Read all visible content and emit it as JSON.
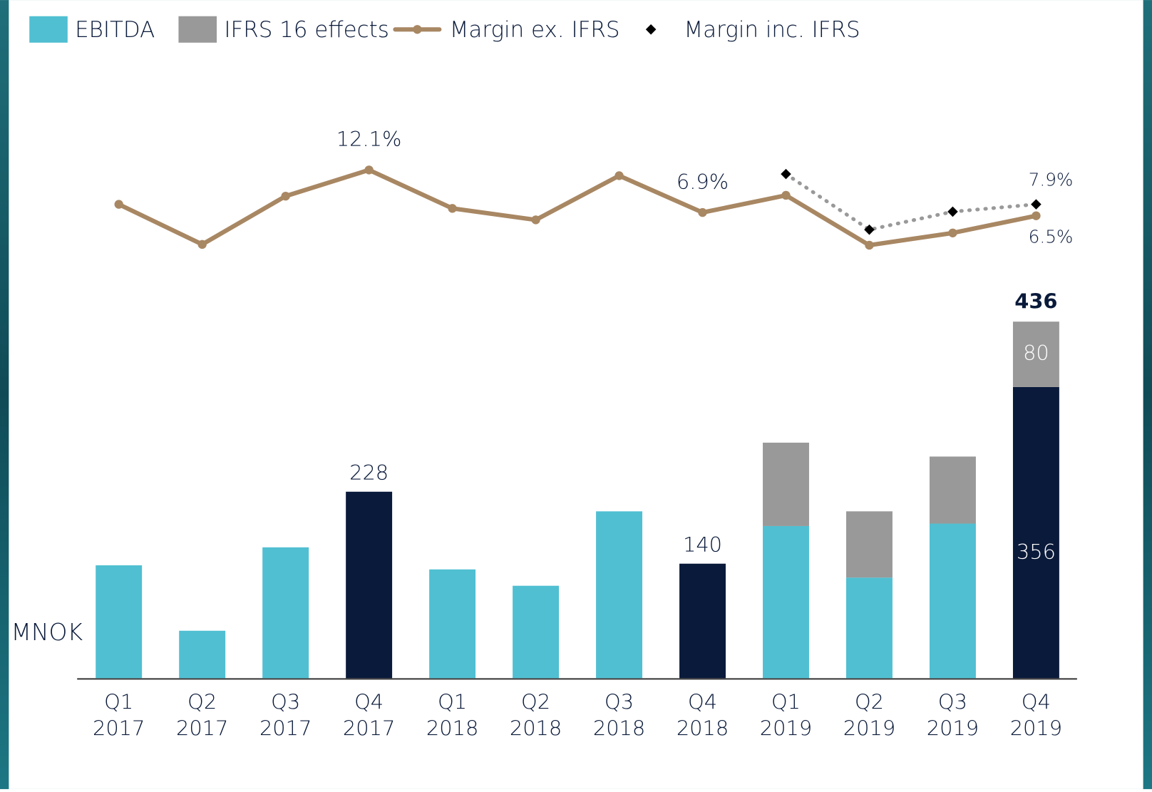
{
  "chart_data": {
    "type": "bar",
    "categories": [
      [
        "Q1",
        "2017"
      ],
      [
        "Q2",
        "2017"
      ],
      [
        "Q3",
        "2017"
      ],
      [
        "Q4",
        "2017"
      ],
      [
        "Q1",
        "2018"
      ],
      [
        "Q2",
        "2018"
      ],
      [
        "Q3",
        "2018"
      ],
      [
        "Q4",
        "2018"
      ],
      [
        "Q1",
        "2019"
      ],
      [
        "Q2",
        "2019"
      ],
      [
        "Q3",
        "2019"
      ],
      [
        "Q4",
        "2019"
      ]
    ],
    "y_label": "MNOK",
    "ylim": [
      0,
      460
    ],
    "y2lim": [
      0,
      18.5
    ],
    "series": [
      {
        "name": "EBITDA",
        "type": "bar",
        "color": "#50bfd2",
        "point_colors": [
          "#50bfd2",
          "#50bfd2",
          "#50bfd2",
          "#0a1a3a",
          "#50bfd2",
          "#50bfd2",
          "#50bfd2",
          "#0a1a3a",
          "#50bfd2",
          "#50bfd2",
          "#50bfd2",
          "#0a1a3a"
        ],
        "labeled": [
          false,
          false,
          false,
          true,
          false,
          false,
          false,
          true,
          false,
          false,
          false,
          true
        ],
        "values": [
          138,
          58,
          160,
          228,
          133,
          113,
          204,
          140,
          186,
          123,
          189,
          356
        ]
      },
      {
        "name": "IFRS 16 effects",
        "type": "bar",
        "color": "#999999",
        "labeled": [
          false,
          false,
          false,
          false,
          false,
          false,
          false,
          false,
          false,
          false,
          false,
          true
        ],
        "values": [
          null,
          null,
          null,
          null,
          null,
          null,
          null,
          null,
          102,
          81,
          82,
          80
        ]
      },
      {
        "name": "Margin ex. IFRS",
        "type": "line",
        "axis": "y2",
        "color": "#a88763",
        "values": [
          7.9,
          3.0,
          8.9,
          12.1,
          7.4,
          6.0,
          11.4,
          6.9,
          9.0,
          2.9,
          4.4,
          6.5
        ],
        "value_labels": [
          null,
          null,
          null,
          "12.1%",
          null,
          null,
          null,
          "6.9%",
          null,
          null,
          null,
          "6.5%"
        ]
      },
      {
        "name": "Margin inc. IFRS",
        "type": "line",
        "axis": "y2",
        "color": "#000000",
        "line_color": "#999999",
        "dotted": true,
        "values": [
          null,
          null,
          null,
          null,
          null,
          null,
          null,
          null,
          11.6,
          4.8,
          7.0,
          7.9
        ],
        "value_labels": [
          null,
          null,
          null,
          null,
          null,
          null,
          null,
          null,
          null,
          null,
          null,
          "7.9%"
        ]
      }
    ],
    "stack_totals": [
      null,
      null,
      null,
      null,
      null,
      null,
      null,
      null,
      null,
      null,
      null,
      436
    ]
  }
}
